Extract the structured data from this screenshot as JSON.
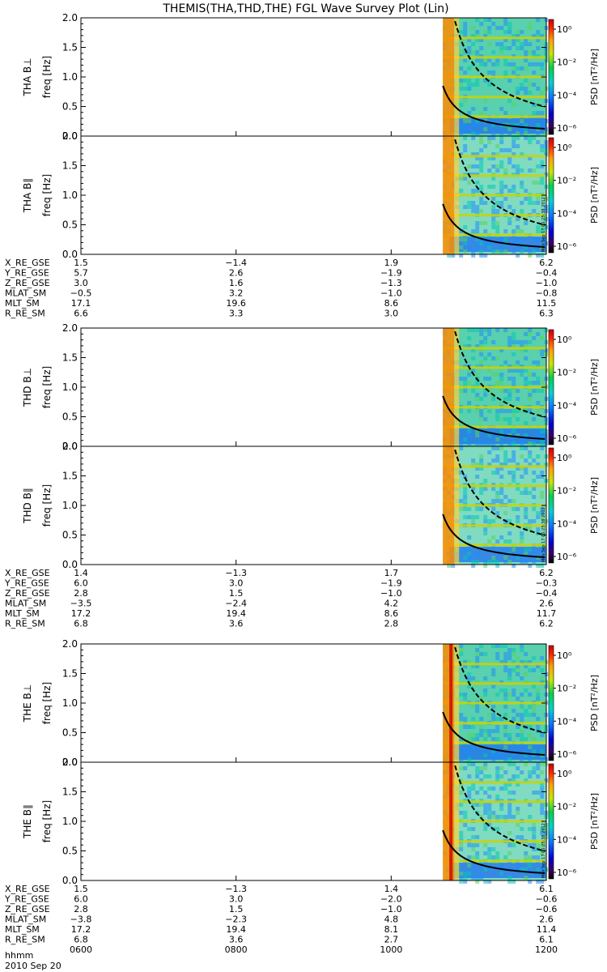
{
  "title": "THEMIS(THA,THD,THE) FGL Wave Survey Plot (Lin)",
  "stamp": "Mon Sep 17 06:25:38 2012",
  "colors": {
    "ridge": "#ff8c00",
    "line": "#c8d20a",
    "bg": "#3cc8a0",
    "low": "#1e6ef0",
    "curve": "#000000",
    "spike": "#d21e00"
  },
  "chart_data": {
    "type": "heatmap",
    "title": "THEMIS(THA,THD,THE) FGL Wave Survey Plot (Lin)",
    "xlabel": "hhmm",
    "date_label": "2010 Sep 20",
    "x_ticks": [
      "0600",
      "0800",
      "1000",
      "1200"
    ],
    "x_range": [
      "0600",
      "1200"
    ],
    "ylabel": "freq [Hz]",
    "ylim": [
      0.0,
      2.0
    ],
    "y_ticks": [
      "0.0",
      "0.5",
      "1.0",
      "1.5",
      "2.0"
    ],
    "y_scale": "linear",
    "data_start": "1040",
    "colorbar": {
      "label": "PSD [nT²/Hz]",
      "scale": "log",
      "ticks": [
        "10⁰",
        "10⁻²",
        "10⁻⁴",
        "10⁻⁶"
      ],
      "range": [
        "10⁻⁷",
        "10¹"
      ]
    },
    "probes": [
      {
        "id": "THA",
        "panels": [
          "THA B⊥",
          "THA B∥"
        ],
        "ephemeris": [
          {
            "label": "X_RE_GSE",
            "values": [
              "1.5",
              "−1.4",
              "1.9",
              "6.2"
            ]
          },
          {
            "label": "Y_RE_GSE",
            "values": [
              "5.7",
              "2.6",
              "−1.9",
              "−0.4"
            ]
          },
          {
            "label": "Z_RE_GSE",
            "values": [
              "3.0",
              "1.6",
              "−1.3",
              "−1.0"
            ]
          },
          {
            "label": "MLAT_SM",
            "values": [
              "−0.5",
              "3.2",
              "−1.0",
              "−0.8"
            ]
          },
          {
            "label": "MLT_SM",
            "values": [
              "17.1",
              "19.6",
              "8.6",
              "11.5"
            ]
          },
          {
            "label": "R_RE_SM",
            "values": [
              "6.6",
              "3.3",
              "3.0",
              "6.3"
            ]
          }
        ]
      },
      {
        "id": "THD",
        "panels": [
          "THD B⊥",
          "THD B∥"
        ],
        "ephemeris": [
          {
            "label": "X_RE_GSE",
            "values": [
              "1.4",
              "−1.3",
              "1.7",
              "6.2"
            ]
          },
          {
            "label": "Y_RE_GSE",
            "values": [
              "6.0",
              "3.0",
              "−1.9",
              "−0.3"
            ]
          },
          {
            "label": "Z_RE_GSE",
            "values": [
              "2.8",
              "1.5",
              "−1.0",
              "−0.4"
            ]
          },
          {
            "label": "MLAT_SM",
            "values": [
              "−3.5",
              "−2.4",
              "4.2",
              "2.6"
            ]
          },
          {
            "label": "MLT_SM",
            "values": [
              "17.2",
              "19.4",
              "8.6",
              "11.7"
            ]
          },
          {
            "label": "R_RE_SM",
            "values": [
              "6.8",
              "3.6",
              "2.8",
              "6.2"
            ]
          }
        ]
      },
      {
        "id": "THE",
        "panels": [
          "THE B⊥",
          "THE B∥"
        ],
        "ephemeris": [
          {
            "label": "X_RE_GSE",
            "values": [
              "1.5",
              "−1.3",
              "1.4",
              "6.1"
            ]
          },
          {
            "label": "Y_RE_GSE",
            "values": [
              "6.0",
              "3.0",
              "−2.0",
              "−0.6"
            ]
          },
          {
            "label": "Z_RE_GSE",
            "values": [
              "2.8",
              "1.5",
              "−1.0",
              "−0.6"
            ]
          },
          {
            "label": "MLAT_SM",
            "values": [
              "−3.8",
              "−2.3",
              "4.8",
              "2.6"
            ]
          },
          {
            "label": "MLT_SM",
            "values": [
              "17.2",
              "19.4",
              "8.1",
              "11.4"
            ]
          },
          {
            "label": "R_RE_SM",
            "values": [
              "6.8",
              "3.6",
              "2.7",
              "6.1"
            ]
          }
        ]
      }
    ]
  }
}
